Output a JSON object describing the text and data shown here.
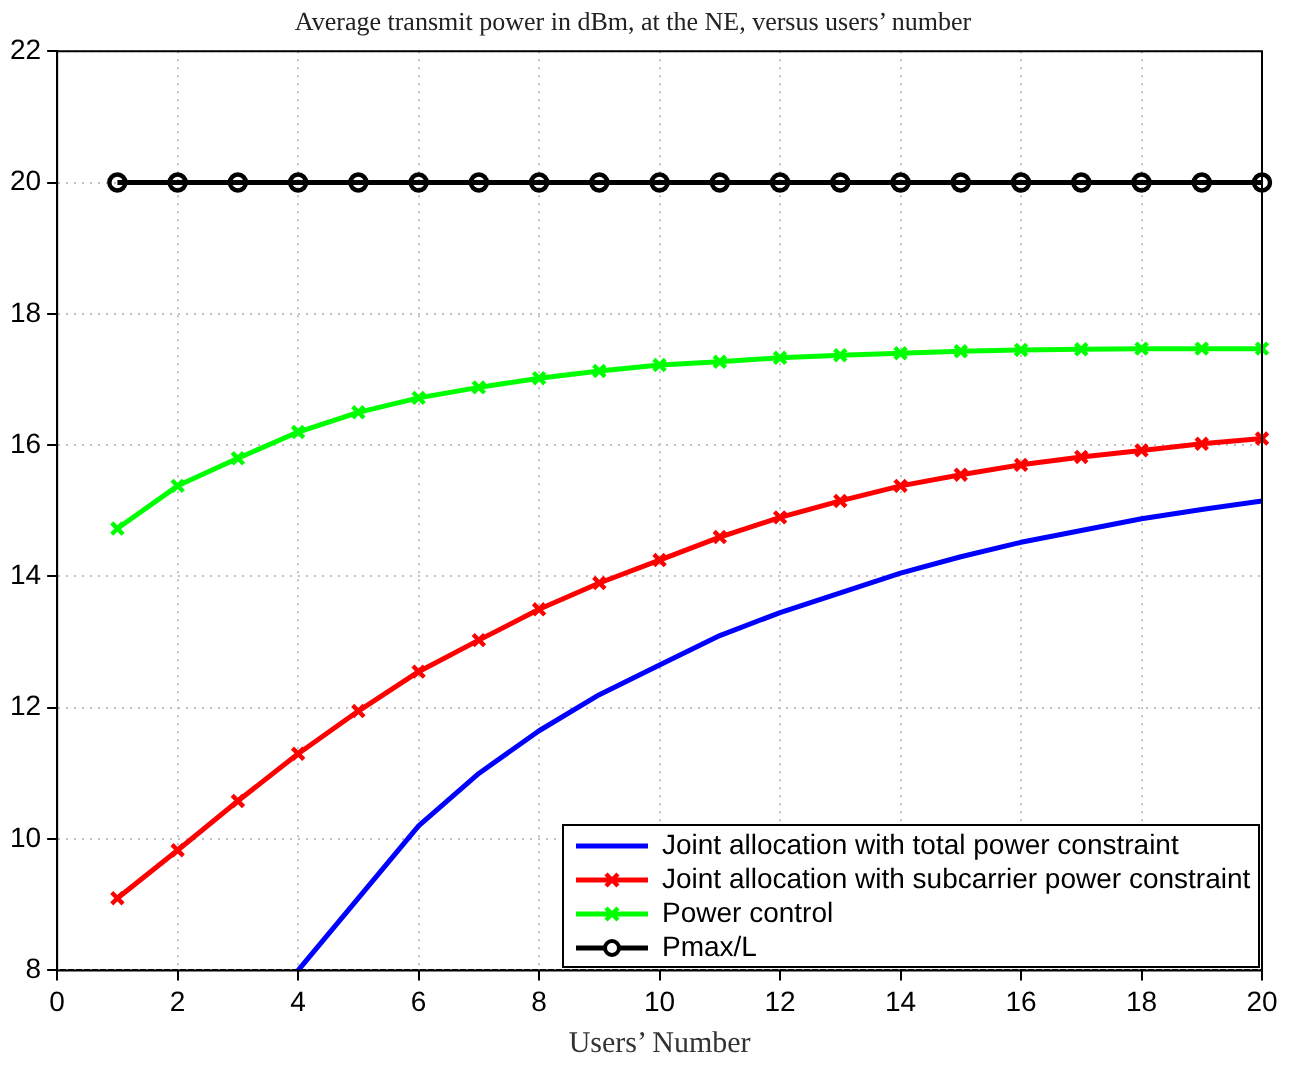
{
  "chart_data": {
    "type": "line",
    "title": "Average transmit power in dBm, at the NE, versus users’ number",
    "xlabel": "Users’ Number",
    "x": [
      1,
      2,
      3,
      4,
      5,
      6,
      7,
      8,
      9,
      10,
      11,
      12,
      13,
      14,
      15,
      16,
      17,
      18,
      19,
      20
    ],
    "series": [
      {
        "name": "Joint allocation with total power constraint",
        "color": "#0000ff",
        "marker": "none",
        "values": [
          null,
          null,
          null,
          8.0,
          9.1,
          10.2,
          11.0,
          11.65,
          12.2,
          12.65,
          13.1,
          13.45,
          13.75,
          14.05,
          14.3,
          14.52,
          14.7,
          14.88,
          15.02,
          15.15
        ]
      },
      {
        "name": "Joint allocation with subcarrier power constraint",
        "color": "#ff0000",
        "marker": "cross",
        "values": [
          9.1,
          9.83,
          10.58,
          11.3,
          11.95,
          12.55,
          13.03,
          13.5,
          13.9,
          14.25,
          14.6,
          14.9,
          15.15,
          15.38,
          15.55,
          15.7,
          15.82,
          15.92,
          16.02,
          16.1
        ]
      },
      {
        "name": "Power control",
        "color": "#00ff00",
        "marker": "cross",
        "values": [
          14.73,
          15.38,
          15.8,
          16.2,
          16.5,
          16.72,
          16.88,
          17.02,
          17.13,
          17.22,
          17.27,
          17.33,
          17.37,
          17.4,
          17.43,
          17.45,
          17.46,
          17.47,
          17.47,
          17.47
        ]
      },
      {
        "name": "Pmax/L",
        "color": "#000000",
        "marker": "circle",
        "values": [
          20,
          20,
          20,
          20,
          20,
          20,
          20,
          20,
          20,
          20,
          20,
          20,
          20,
          20,
          20,
          20,
          20,
          20,
          20,
          20
        ]
      }
    ],
    "xlim": [
      0,
      20
    ],
    "xticks": [
      0,
      2,
      4,
      6,
      8,
      10,
      12,
      14,
      16,
      18,
      20
    ],
    "ylim": [
      8,
      22
    ],
    "yticks": [
      8,
      10,
      12,
      14,
      16,
      18,
      20,
      22
    ],
    "grid": true,
    "legend": "bottom right",
    "line_style": "solid"
  }
}
